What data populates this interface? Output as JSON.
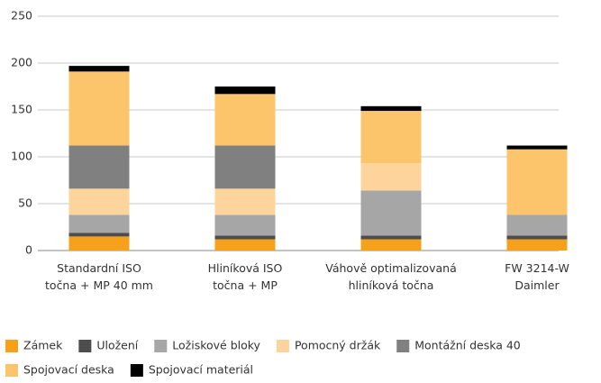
{
  "chart_data": {
    "type": "stacked_bar",
    "categories": [
      [
        "Standardní ISO",
        "točna + MP 40 mm"
      ],
      [
        "Hliníková ISO",
        "točna + MP"
      ],
      [
        "Váhově optimalizovaná",
        "hliníková točna"
      ],
      [
        "FW 3214-W",
        "Daimler"
      ]
    ],
    "series": [
      {
        "name": "Zámek",
        "color": "#f5a11c",
        "values": [
          15,
          12,
          12,
          12
        ]
      },
      {
        "name": "Uložení",
        "color": "#4d4d4d",
        "values": [
          4,
          4,
          4,
          4
        ]
      },
      {
        "name": "Ložiskové bloky",
        "color": "#a6a6a6",
        "values": [
          19,
          22,
          48,
          22
        ]
      },
      {
        "name": "Pomocný držák",
        "color": "#fdd59c",
        "values": [
          28,
          28,
          29,
          0
        ]
      },
      {
        "name": "Montážní deska 40",
        "color": "#808080",
        "values": [
          46,
          46,
          0,
          0
        ]
      },
      {
        "name": "Spojovací deska",
        "color": "#fcc46b",
        "values": [
          79,
          55,
          56,
          70
        ]
      },
      {
        "name": "Spojovací materiál",
        "color": "#000000",
        "values": [
          6,
          8,
          5,
          4
        ]
      }
    ],
    "ylim": [
      0,
      250
    ],
    "yticks": [
      0,
      50,
      100,
      150,
      200,
      250
    ],
    "grid": true
  }
}
